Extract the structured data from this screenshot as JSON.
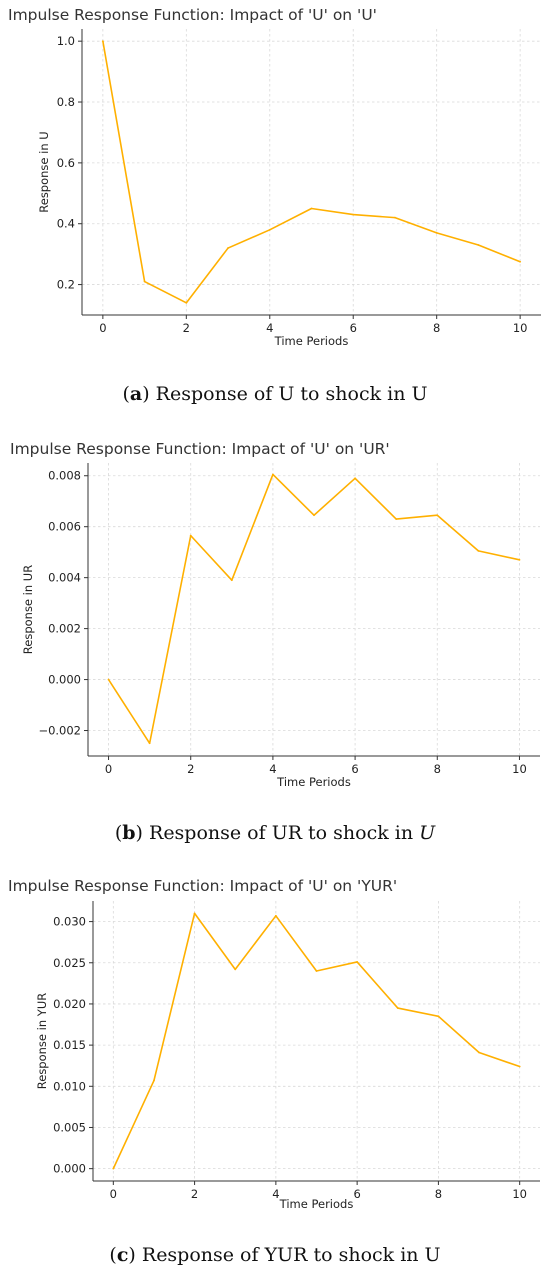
{
  "figure": {
    "panels": [
      {
        "id": "a",
        "caption": {
          "open": "(",
          "letter": "a",
          "close": ")",
          "text": " Response of U to shock in U",
          "italic_tail": ""
        }
      },
      {
        "id": "b",
        "caption": {
          "open": "(",
          "letter": "b",
          "close": ")",
          "text": " Response of UR to shock in ",
          "italic_tail": "U"
        }
      },
      {
        "id": "c",
        "caption": {
          "open": "(",
          "letter": "c",
          "close": ")",
          "text": " Response of YUR to shock in U",
          "italic_tail": ""
        }
      }
    ]
  },
  "chart_data": [
    {
      "type": "line",
      "title": "Impulse Response Function: Impact of 'U' on 'U'",
      "xlabel": "Time Periods",
      "ylabel": "Response in U",
      "x": [
        0,
        1,
        2,
        3,
        4,
        5,
        6,
        7,
        8,
        9,
        10
      ],
      "series": [
        {
          "values": [
            1.0,
            0.21,
            0.14,
            0.32,
            0.38,
            0.45,
            0.43,
            0.42,
            0.37,
            0.33,
            0.275
          ]
        }
      ],
      "xlim": [
        -0.5,
        10.5
      ],
      "ylim": [
        0.1,
        1.04
      ],
      "xticks": [
        0,
        2,
        4,
        6,
        8,
        10
      ],
      "xtick_labels": [
        "0",
        "2",
        "4",
        "6",
        "8",
        "10"
      ],
      "yticks": [
        0.2,
        0.4,
        0.6,
        0.8,
        1.0
      ],
      "ytick_labels": [
        "0.2",
        "0.4",
        "0.6",
        "0.8",
        "1.0"
      ],
      "grid": true,
      "line_color": "#FFB000"
    },
    {
      "type": "line",
      "title": "Impulse Response Function: Impact of 'U' on 'UR'",
      "xlabel": "Time Periods",
      "ylabel": "Response in UR",
      "x": [
        0,
        1,
        2,
        3,
        4,
        5,
        6,
        7,
        8,
        9,
        10
      ],
      "series": [
        {
          "values": [
            0.0,
            -0.0025,
            0.00565,
            0.0039,
            0.00805,
            0.00645,
            0.0079,
            0.0063,
            0.00645,
            0.00505,
            0.0047
          ]
        }
      ],
      "xlim": [
        -0.5,
        10.5
      ],
      "ylim": [
        -0.003,
        0.0085
      ],
      "xticks": [
        0,
        2,
        4,
        6,
        8,
        10
      ],
      "xtick_labels": [
        "0",
        "2",
        "4",
        "6",
        "8",
        "10"
      ],
      "yticks": [
        -0.002,
        0.0,
        0.002,
        0.004,
        0.006,
        0.008
      ],
      "ytick_labels": [
        "−0.002",
        "0.000",
        "0.002",
        "0.004",
        "0.006",
        "0.008"
      ],
      "grid": true,
      "line_color": "#FFB000"
    },
    {
      "type": "line",
      "title": "Impulse Response Function: Impact of 'U' on 'YUR'",
      "xlabel": "Time Periods",
      "ylabel": "Response in YUR",
      "x": [
        0,
        1,
        2,
        3,
        4,
        5,
        6,
        7,
        8,
        9,
        10
      ],
      "series": [
        {
          "values": [
            0.0,
            0.0107,
            0.031,
            0.0242,
            0.0307,
            0.024,
            0.0251,
            0.0195,
            0.0185,
            0.0141,
            0.0124
          ]
        }
      ],
      "xlim": [
        -0.5,
        10.5
      ],
      "ylim": [
        -0.0015,
        0.0325
      ],
      "xticks": [
        0,
        2,
        4,
        6,
        8,
        10
      ],
      "xtick_labels": [
        "0",
        "2",
        "4",
        "6",
        "8",
        "10"
      ],
      "yticks": [
        0.0,
        0.005,
        0.01,
        0.015,
        0.02,
        0.025,
        0.03
      ],
      "ytick_labels": [
        "0.000",
        "0.005",
        "0.010",
        "0.015",
        "0.020",
        "0.025",
        "0.030"
      ],
      "grid": true,
      "line_color": "#FFB000"
    }
  ]
}
